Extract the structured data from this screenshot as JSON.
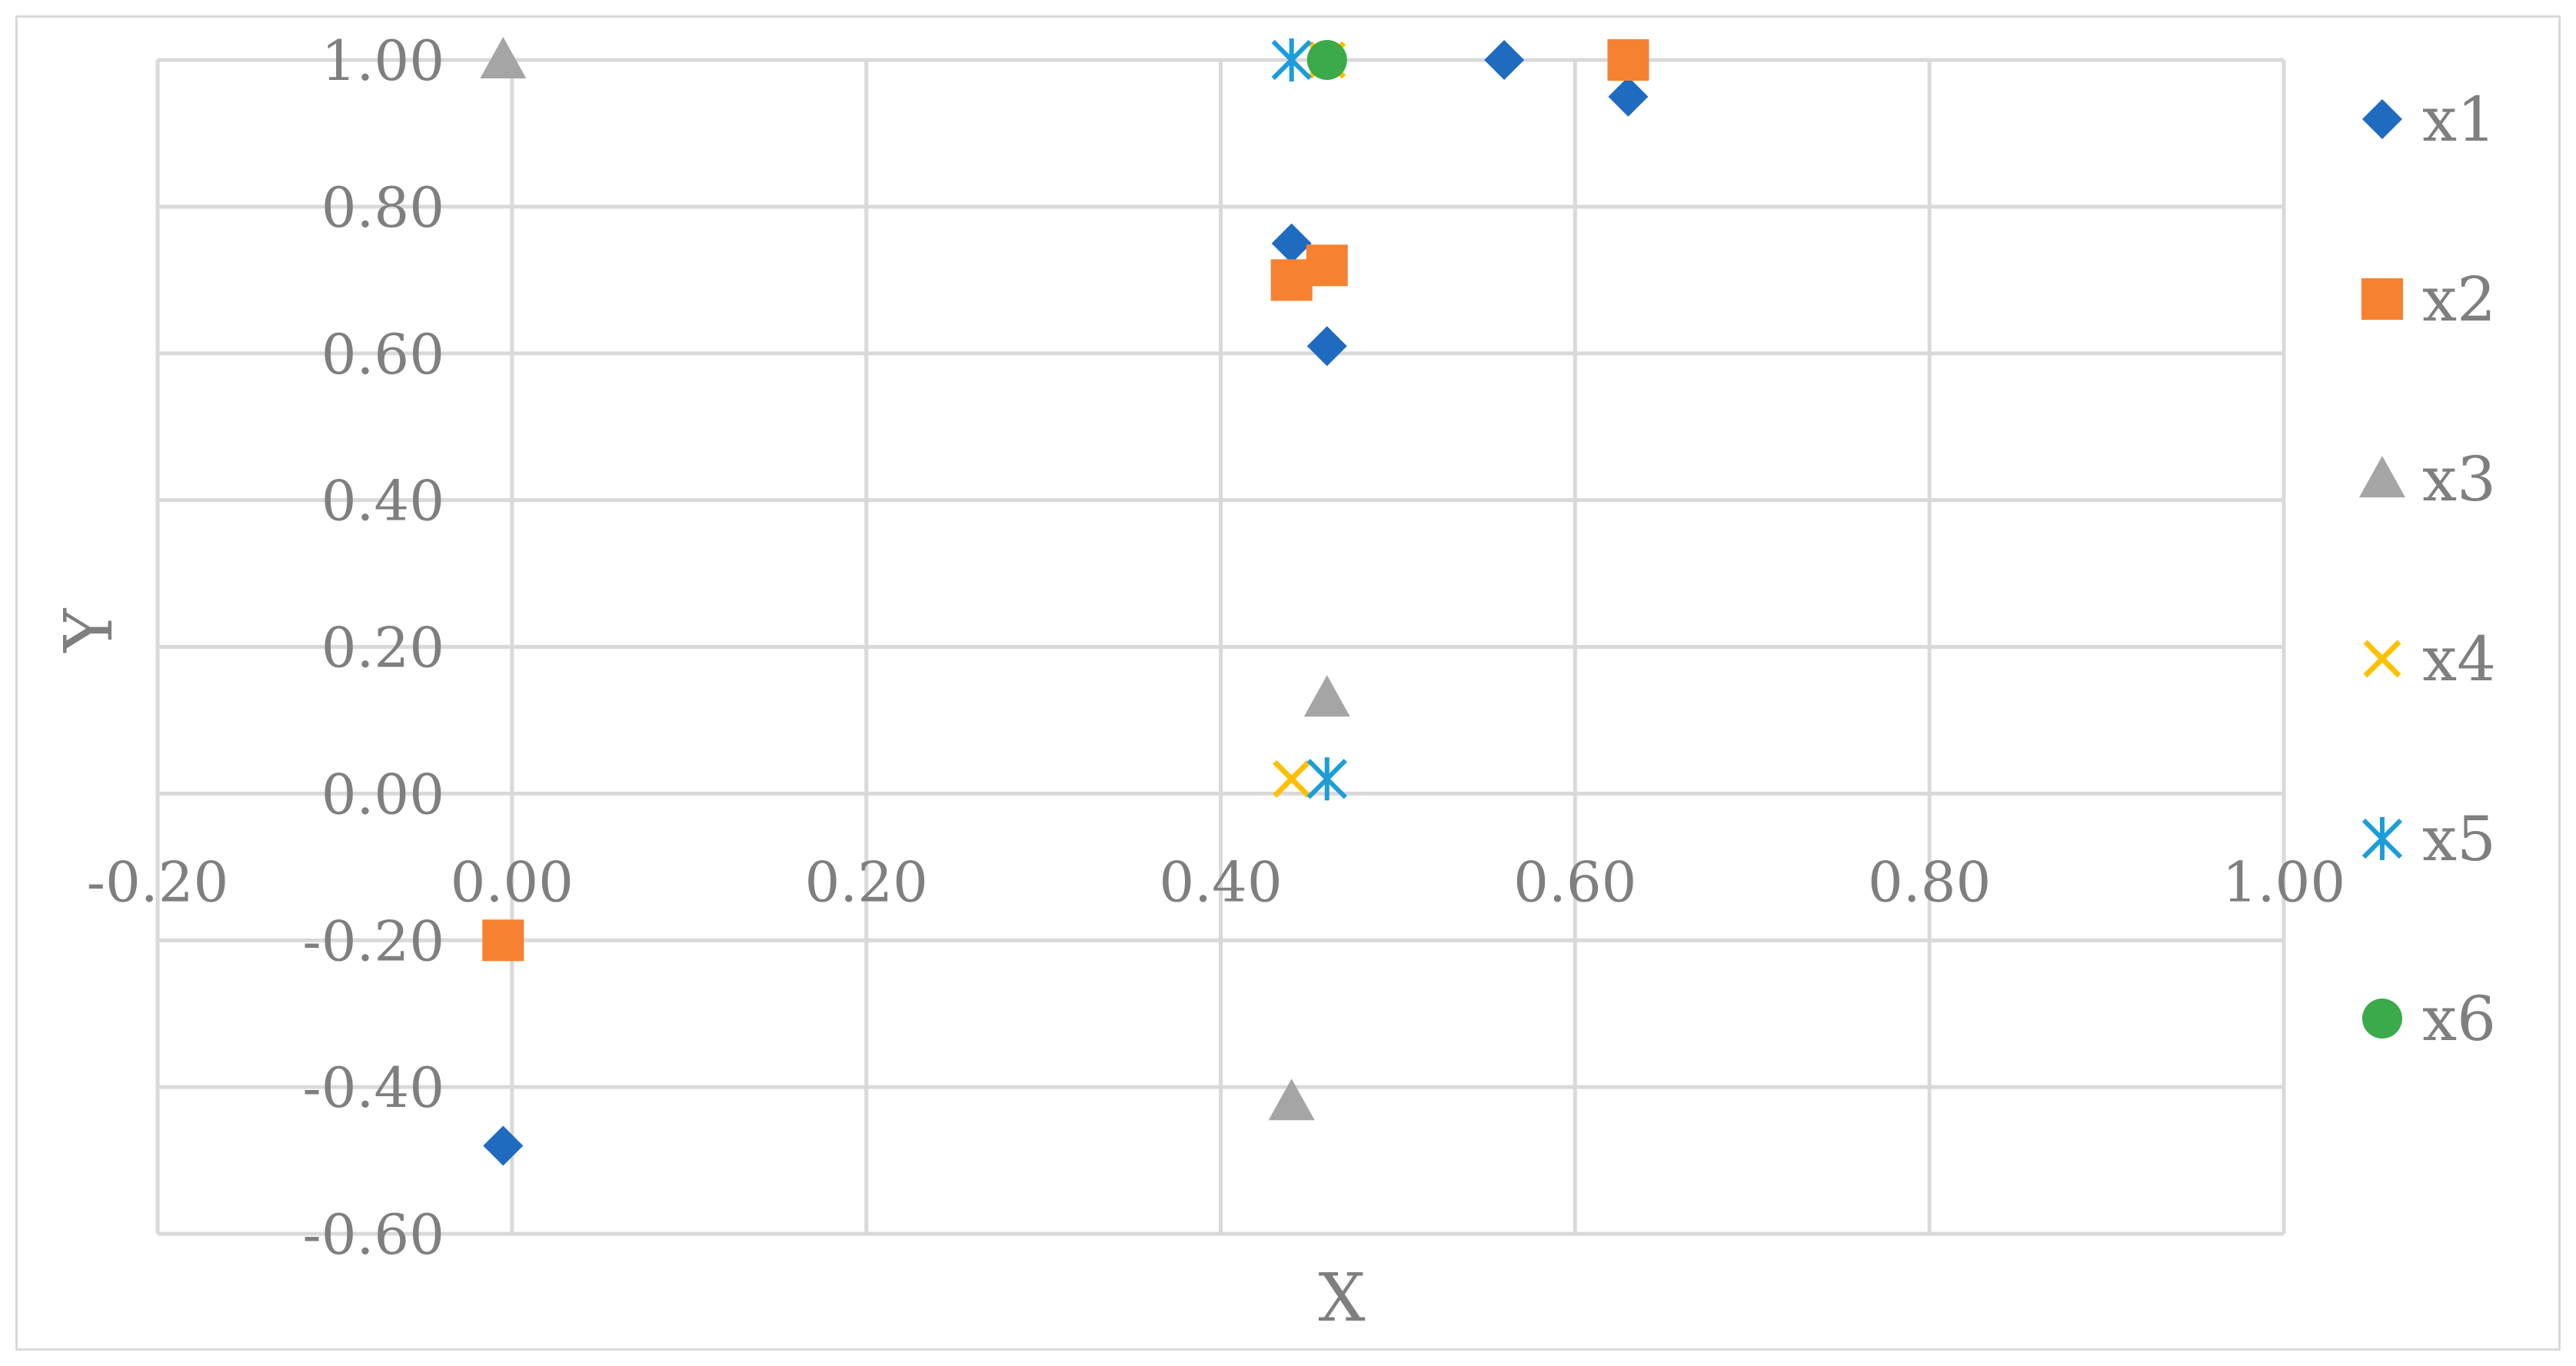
{
  "chart_data": {
    "type": "scatter",
    "title": "",
    "xlabel": "X",
    "ylabel": "Y",
    "xlim": [
      -0.2,
      1.0
    ],
    "ylim": [
      -0.6,
      1.0
    ],
    "x_ticks": [
      -0.2,
      0.0,
      0.2,
      0.4,
      0.6,
      0.8,
      1.0
    ],
    "y_ticks": [
      -0.6,
      -0.4,
      -0.2,
      0.0,
      0.2,
      0.4,
      0.6,
      0.8,
      1.0
    ],
    "x_tick_labels": [
      "-0.20",
      "0.00",
      "0.20",
      "0.40",
      "0.60",
      "0.80",
      "1.00"
    ],
    "y_tick_labels": [
      "-0.60",
      "-0.40",
      "-0.20",
      "0.00",
      "0.20",
      "0.40",
      "0.60",
      "0.80",
      "1.00"
    ],
    "grid": true,
    "legend_position": "right",
    "series": [
      {
        "name": "x1",
        "marker": "diamond",
        "color": "#1f6bbf",
        "points": [
          [
            -0.005,
            -0.48
          ],
          [
            0.44,
            0.75
          ],
          [
            0.46,
            0.61
          ],
          [
            0.56,
            1.0
          ],
          [
            0.63,
            0.95
          ]
        ]
      },
      {
        "name": "x2",
        "marker": "square",
        "color": "#f58231",
        "points": [
          [
            -0.005,
            -0.2
          ],
          [
            0.44,
            0.7
          ],
          [
            0.46,
            0.72
          ],
          [
            0.63,
            1.0
          ]
        ]
      },
      {
        "name": "x3",
        "marker": "triangle",
        "color": "#a5a5a5",
        "points": [
          [
            -0.005,
            1.0
          ],
          [
            0.44,
            -0.42
          ],
          [
            0.46,
            0.13
          ]
        ]
      },
      {
        "name": "x4",
        "marker": "x",
        "color": "#ffc000",
        "points": [
          [
            0.44,
            0.02
          ],
          [
            0.46,
            1.0
          ]
        ]
      },
      {
        "name": "x5",
        "marker": "star",
        "color": "#1b9ddb",
        "points": [
          [
            0.44,
            1.0
          ],
          [
            0.46,
            0.02
          ]
        ]
      },
      {
        "name": "x6",
        "marker": "circle",
        "color": "#3aaa4a",
        "points": [
          [
            0.46,
            1.0
          ]
        ]
      }
    ]
  }
}
